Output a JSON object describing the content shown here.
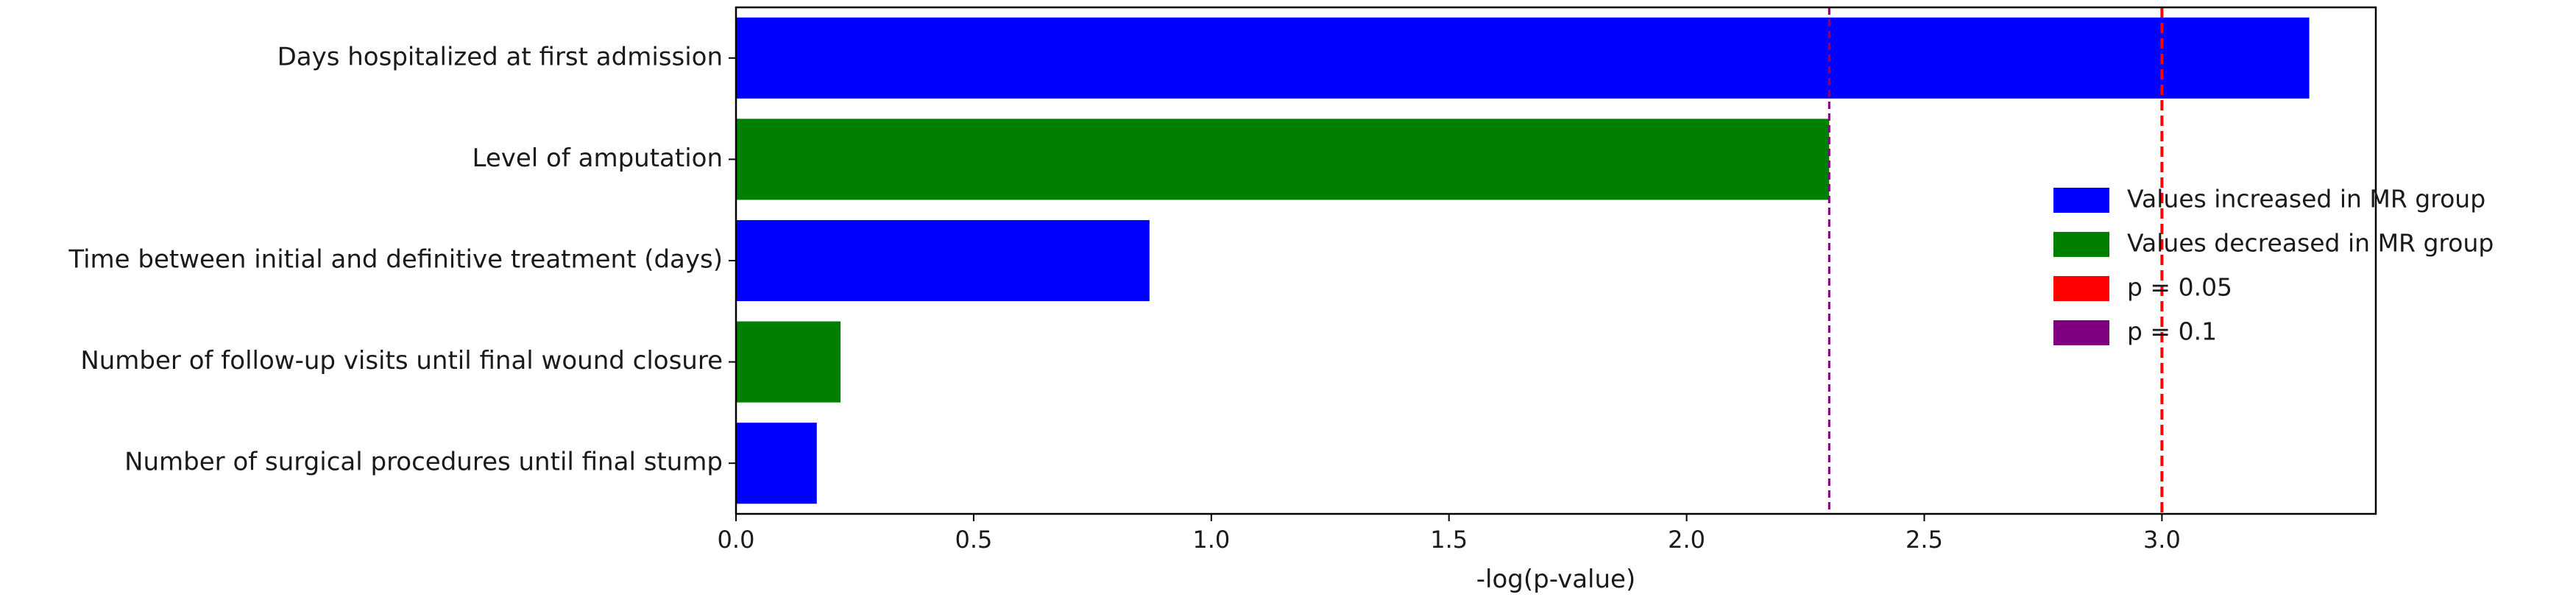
{
  "chart_data": {
    "type": "bar",
    "orientation": "horizontal",
    "title": "",
    "xlabel": "-log(p-value)",
    "ylabel": "",
    "xlim": [
      0,
      3.45
    ],
    "xticks": [
      0.0,
      0.5,
      1.0,
      1.5,
      2.0,
      2.5,
      3.0
    ],
    "xtick_labels": [
      "0.0",
      "0.5",
      "1.0",
      "1.5",
      "2.0",
      "2.5",
      "3.0"
    ],
    "grid": false,
    "legend_position": "right",
    "categories": [
      "Days hospitalized at first admission",
      "Level of amputation",
      "Time between initial and definitive treatment (days)",
      "Number of follow-up visits until final wound closure",
      "Number of surgical procedures until final stump"
    ],
    "values": [
      3.31,
      2.3,
      0.87,
      0.22,
      0.17
    ],
    "groups": [
      "increased",
      "decreased",
      "increased",
      "decreased",
      "increased"
    ],
    "colors": {
      "increased": "#0000ff",
      "decreased": "#008000",
      "p005": "#ff0000",
      "p01": "#800080"
    },
    "thresholds": [
      {
        "label": "p = 0.05",
        "x": 3.0,
        "color_key": "p005"
      },
      {
        "label": "p = 0.1",
        "x": 2.3,
        "color_key": "p01"
      }
    ],
    "legend": [
      {
        "label": "Values increased in MR group",
        "color_key": "increased"
      },
      {
        "label": "Values decreased in MR group",
        "color_key": "decreased"
      },
      {
        "label": "p = 0.05",
        "color_key": "p005"
      },
      {
        "label": "p = 0.1",
        "color_key": "p01"
      }
    ]
  }
}
